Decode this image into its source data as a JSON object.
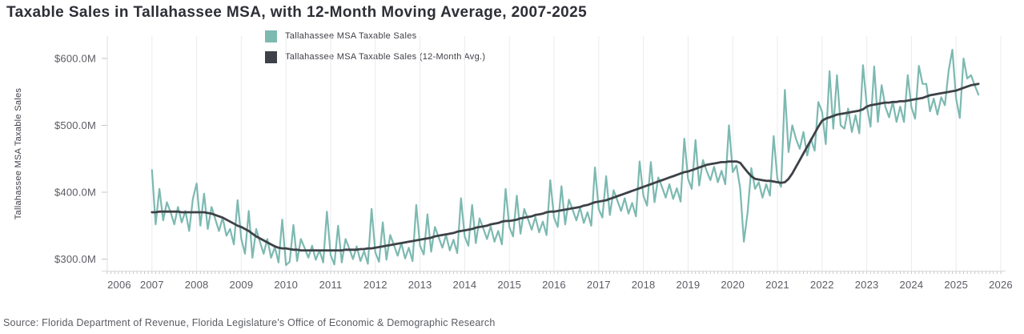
{
  "source": "Source: Florida Department of Revenue, Florida Legislature's Office of Economic & Demographic Research",
  "chart_data": {
    "type": "line",
    "title": "Taxable Sales in Tallahassee MSA, with 12-Month Moving Average, 2007-2025",
    "xlabel": "",
    "ylabel": "Tallahassee MSA Taxable Sales",
    "unit": "USD millions",
    "x_frequency": "monthly",
    "x_start": "2007-01",
    "x_end": "2025-07",
    "xlim": [
      2006,
      2026
    ],
    "ylim": [
      283,
      633
    ],
    "grid": "vertical-years-only",
    "legend_position": "top-center",
    "x_ticks": [
      2006,
      2007,
      2008,
      2009,
      2010,
      2011,
      2012,
      2013,
      2014,
      2015,
      2016,
      2017,
      2018,
      2019,
      2020,
      2021,
      2022,
      2023,
      2024,
      2025,
      2026
    ],
    "y_ticks": [
      {
        "label": "$600.0M",
        "value": 600
      },
      {
        "label": "$500.0M",
        "value": 500
      },
      {
        "label": "$400.0M",
        "value": 400
      },
      {
        "label": "$300.0M",
        "value": 300
      }
    ],
    "series": [
      {
        "name": "Tallahassee MSA Taxable Sales",
        "color": "#7cb9b1",
        "line_width": 2.2,
        "values": [
          433,
          352,
          405,
          358,
          385,
          370,
          352,
          378,
          355,
          372,
          342,
          390,
          413,
          350,
          398,
          345,
          378,
          360,
          342,
          362,
          335,
          345,
          322,
          388,
          330,
          308,
          372,
          302,
          345,
          326,
          308,
          330,
          302,
          318,
          295,
          359,
          291,
          296,
          351,
          297,
          330,
          317,
          302,
          320,
          299,
          313,
          295,
          371,
          306,
          292,
          350,
          295,
          330,
          316,
          300,
          319,
          297,
          312,
          293,
          375,
          310,
          296,
          355,
          299,
          336,
          321,
          305,
          324,
          301,
          317,
          297,
          381,
          320,
          307,
          367,
          311,
          348,
          333,
          317,
          336,
          313,
          329,
          309,
          391,
          334,
          320,
          381,
          324,
          361,
          346,
          330,
          349,
          326,
          342,
          322,
          405,
          348,
          334,
          395,
          338,
          375,
          360,
          344,
          363,
          340,
          356,
          336,
          418,
          362,
          348,
          409,
          352,
          389,
          374,
          358,
          377,
          354,
          370,
          350,
          437,
          375,
          362,
          424,
          366,
          403,
          388,
          372,
          391,
          368,
          384,
          364,
          446,
          395,
          380,
          445,
          385,
          422,
          408,
          392,
          412,
          390,
          406,
          386,
          480,
          420,
          405,
          478,
          410,
          448,
          432,
          418,
          438,
          415,
          432,
          412,
          500,
          430,
          440,
          406,
          326,
          370,
          436,
          405,
          415,
          392,
          412,
          395,
          484,
          420,
          408,
          553,
          460,
          500,
          480,
          465,
          490,
          455,
          480,
          462,
          535,
          520,
          472,
          581,
          495,
          575,
          500,
          495,
          525,
          490,
          515,
          488,
          590,
          530,
          498,
          588,
          505,
          560,
          528,
          512,
          535,
          505,
          528,
          505,
          575,
          527,
          510,
          589,
          562,
          562,
          521,
          540,
          516,
          542,
          530,
          582,
          613,
          540,
          511,
          600,
          570,
          575,
          560,
          546
        ]
      },
      {
        "name": "Tallahassee MSA Taxable Sales (12-Month Avg.)",
        "color": "#3e4147",
        "line_width": 2.8,
        "values": [
          370,
          370,
          371,
          371,
          371,
          371,
          371,
          371,
          370,
          370,
          370,
          370,
          370,
          370,
          370,
          369,
          368,
          366,
          364,
          362,
          359,
          356,
          353,
          350,
          348,
          345,
          342,
          338,
          334,
          331,
          328,
          325,
          322,
          319,
          317,
          316,
          316,
          315,
          314,
          314,
          313,
          313,
          313,
          313,
          313,
          313,
          313,
          313,
          313,
          313,
          313,
          313,
          314,
          314,
          314,
          314,
          315,
          315,
          316,
          316,
          317,
          318,
          319,
          320,
          321,
          322,
          323,
          324,
          325,
          326,
          327,
          328,
          329,
          330,
          331,
          332,
          334,
          335,
          336,
          337,
          338,
          339,
          341,
          342,
          343,
          344,
          345,
          347,
          348,
          349,
          350,
          352,
          353,
          354,
          356,
          357,
          357,
          358,
          359,
          361,
          362,
          363,
          364,
          366,
          367,
          368,
          370,
          371,
          371,
          372,
          373,
          374,
          375,
          376,
          377,
          378,
          380,
          381,
          383,
          385,
          386,
          387,
          388,
          390,
          392,
          394,
          396,
          398,
          400,
          402,
          404,
          406,
          408,
          410,
          412,
          414,
          416,
          418,
          420,
          422,
          424,
          426,
          428,
          430,
          431,
          433,
          435,
          437,
          439,
          441,
          442,
          443,
          444,
          445,
          445,
          446,
          446,
          446,
          444,
          437,
          430,
          424,
          420,
          419,
          418,
          417,
          417,
          416,
          415,
          414,
          415,
          420,
          428,
          438,
          448,
          458,
          468,
          478,
          488,
          498,
          507,
          510,
          512,
          514,
          516,
          517,
          518,
          519,
          520,
          521,
          522,
          524,
          528,
          530,
          531,
          532,
          533,
          534,
          534,
          535,
          535,
          536,
          536,
          537,
          538,
          539,
          540,
          541,
          543,
          545,
          546,
          547,
          548,
          549,
          550,
          551,
          552,
          554,
          556,
          558,
          560,
          561,
          562
        ]
      }
    ]
  }
}
